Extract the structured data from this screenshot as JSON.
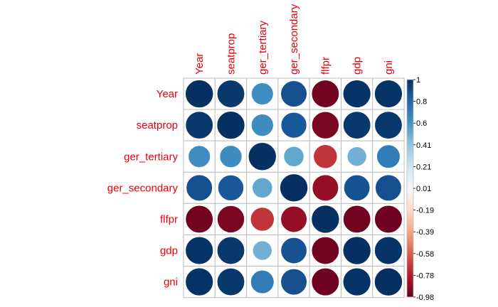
{
  "chart_data": {
    "type": "heatmap",
    "variables": [
      "Year",
      "seatprop",
      "ger_tertiary",
      "ger_secondary",
      "flfpr",
      "gdp",
      "gni"
    ],
    "matrix": [
      [
        1.0,
        0.97,
        0.62,
        0.88,
        -0.97,
        0.99,
        0.99
      ],
      [
        0.97,
        1.0,
        0.63,
        0.85,
        -0.95,
        0.97,
        0.97
      ],
      [
        0.62,
        0.63,
        1.0,
        0.52,
        -0.72,
        0.48,
        0.7
      ],
      [
        0.88,
        0.85,
        0.52,
        1.0,
        -0.88,
        0.87,
        0.88
      ],
      [
        -0.97,
        -0.95,
        -0.72,
        -0.88,
        1.0,
        -0.97,
        -0.98
      ],
      [
        0.99,
        0.97,
        0.48,
        0.87,
        -0.97,
        1.0,
        0.99
      ],
      [
        0.99,
        0.97,
        0.7,
        0.88,
        -0.98,
        0.99,
        1.0
      ]
    ],
    "colorbar": {
      "min": -0.98,
      "max": 1,
      "ticks": [
        "1",
        "0.8",
        "0.6",
        "0.41",
        "0.21",
        "0.01",
        "-0.19",
        "-0.39",
        "-0.58",
        "-0.78",
        "-0.98"
      ],
      "colors": [
        "#67001f",
        "#b2182b",
        "#d6604d",
        "#f4a582",
        "#fddbc7",
        "#f7f7f7",
        "#d1e5f0",
        "#92c5de",
        "#4393c3",
        "#2166ac",
        "#053061"
      ]
    },
    "label_color": "#e8000b",
    "grid_color": "#bebebe"
  }
}
